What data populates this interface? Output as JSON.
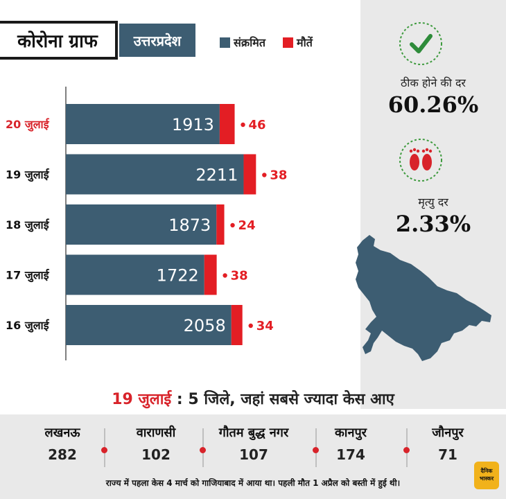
{
  "header": {
    "title": "कोरोना ग्राफ",
    "state": "उत्तरप्रदेश"
  },
  "legend": {
    "infected_label": "संक्रमित",
    "deaths_label": "मौतें",
    "infected_color": "#3d5d72",
    "deaths_color": "#e31e24"
  },
  "chart_data": {
    "type": "bar",
    "orientation": "horizontal",
    "stacked": true,
    "categories": [
      "20 जुलाई",
      "19 जुलाई",
      "18 जुलाई",
      "17 जुलाई",
      "16 जुलाई"
    ],
    "series": [
      {
        "name": "संक्रमित",
        "values": [
          1913,
          2211,
          1873,
          1722,
          2058
        ]
      },
      {
        "name": "मौतें",
        "values": [
          46,
          38,
          24,
          38,
          34
        ]
      }
    ],
    "highlight_category": "20 जुलाई"
  },
  "stats": {
    "recovery_label": "ठीक होने की दर",
    "recovery_value": "60.26%",
    "recovery_icon": "checkmark-icon",
    "mortality_label": "मृत्यु दर",
    "mortality_value": "2.33%",
    "mortality_icon": "footprints-icon"
  },
  "bottom": {
    "heading_date": "19 जुलाई",
    "heading_sep": ":",
    "heading_text": "5 जिले, जहां सबसे ज्यादा केस आए",
    "districts": [
      {
        "name": "लखनऊ",
        "value": "282"
      },
      {
        "name": "वाराणसी",
        "value": "102"
      },
      {
        "name": "गौतम बुद्ध नगर",
        "value": "107"
      },
      {
        "name": "कानपुर",
        "value": "174"
      },
      {
        "name": "जौनपुर",
        "value": "71"
      }
    ],
    "footnote": "राज्य में पहला केस 4 मार्च को गाजियाबाद में आया था। पहली मौत 1 अप्रैल को बस्ती में हुई थी।"
  },
  "brand": {
    "line1": "दैनिक",
    "line2": "भास्कर"
  }
}
